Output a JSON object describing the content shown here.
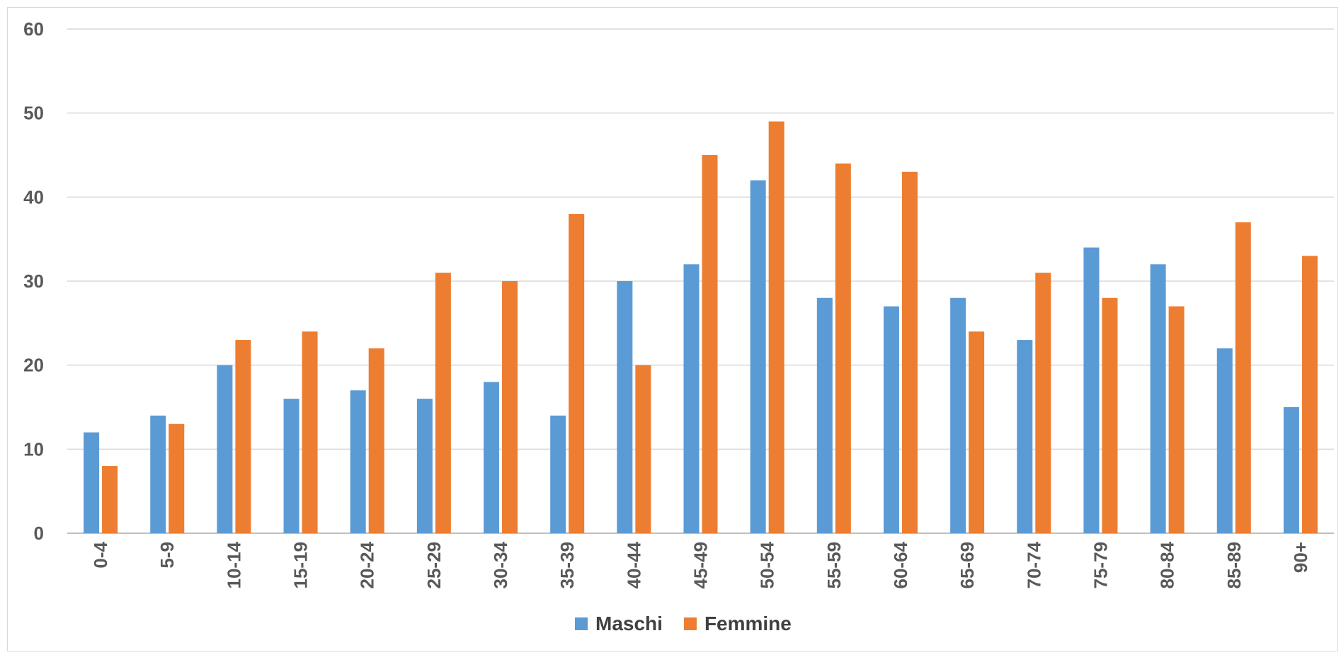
{
  "chart_data": {
    "type": "bar",
    "title": "",
    "xlabel": "",
    "ylabel": "",
    "categories": [
      "0-4",
      "5-9",
      "10-14",
      "15-19",
      "20-24",
      "25-29",
      "30-34",
      "35-39",
      "40-44",
      "45-49",
      "50-54",
      "55-59",
      "60-64",
      "65-69",
      "70-74",
      "75-79",
      "80-84",
      "85-89",
      "90+"
    ],
    "series": [
      {
        "name": "Maschi",
        "color": "#5b9bd5",
        "values": [
          12,
          14,
          20,
          16,
          17,
          16,
          18,
          14,
          30,
          32,
          42,
          28,
          27,
          28,
          23,
          34,
          32,
          22,
          15
        ]
      },
      {
        "name": "Femmine",
        "color": "#ed7d31",
        "values": [
          8,
          13,
          23,
          24,
          22,
          31,
          30,
          38,
          20,
          45,
          49,
          44,
          43,
          24,
          31,
          28,
          27,
          37,
          33
        ]
      }
    ],
    "ylim": [
      0,
      60
    ],
    "yticks": [
      0,
      10,
      20,
      30,
      40,
      50,
      60
    ],
    "grid": true,
    "legend": "bottom-center"
  }
}
